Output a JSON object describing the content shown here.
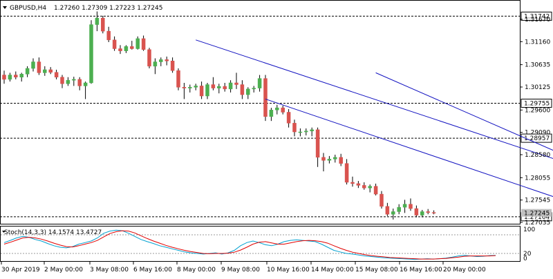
{
  "header": {
    "symbol_label": "GBPUSD,H4",
    "ohlc": "1.27260 1.27309 1.27223 1.27245"
  },
  "stoch": {
    "label": "Stoch(14,3,3) 14.1574 13.4727",
    "levels": [
      "100",
      "80",
      "20",
      "0"
    ]
  },
  "colors": {
    "bull": "#4caf50",
    "bear": "#d9534f",
    "channel": "#1010c0",
    "main_line": "#00a0d0",
    "signal_line": "#e00000",
    "grid_dash": "#000000"
  },
  "chart_data": {
    "type": "candlestick",
    "y_ticks": [
      "1.31670",
      "1.31160",
      "1.30635",
      "1.30125",
      "1.29600",
      "1.29090",
      "1.28580",
      "1.28055",
      "1.27545",
      "1.27035"
    ],
    "y_tick_values": [
      1.3167,
      1.3116,
      1.30635,
      1.30125,
      1.296,
      1.2909,
      1.2858,
      1.28055,
      1.27545,
      1.27035
    ],
    "horizontal_levels": [
      {
        "label": "1.31742",
        "value": 1.31742
      },
      {
        "label": "1.29755",
        "value": 1.29755
      },
      {
        "label": "1.28957",
        "value": 1.28957
      },
      {
        "label": "1.27164",
        "value": 1.27164
      }
    ],
    "current_price_label": "1.27245",
    "x_ticks": [
      "30 Apr 2019",
      "2 May 00:00",
      "3 May 08:00",
      "6 May 16:00",
      "8 May 00:00",
      "9 May 08:00",
      "10 May 16:00",
      "14 May 00:00",
      "15 May 08:00",
      "16 May 16:00",
      "20 May 00:00"
    ],
    "candles": [
      [
        1.304,
        1.305,
        1.302,
        1.303
      ],
      [
        1.303,
        1.3045,
        1.3025,
        1.304
      ],
      [
        1.304,
        1.3048,
        1.303,
        1.3035
      ],
      [
        1.3035,
        1.3045,
        1.3025,
        1.3042
      ],
      [
        1.3042,
        1.306,
        1.3035,
        1.3055
      ],
      [
        1.3055,
        1.3078,
        1.3048,
        1.307
      ],
      [
        1.307,
        1.308,
        1.304,
        1.3045
      ],
      [
        1.3045,
        1.306,
        1.3038,
        1.3052
      ],
      [
        1.3052,
        1.3058,
        1.3042,
        1.3046
      ],
      [
        1.3046,
        1.3052,
        1.303,
        1.3035
      ],
      [
        1.3035,
        1.304,
        1.301,
        1.302
      ],
      [
        1.302,
        1.3035,
        1.3015,
        1.3028
      ],
      [
        1.3028,
        1.3036,
        1.3015,
        1.303
      ],
      [
        1.303,
        1.3035,
        1.3005,
        1.3015
      ],
      [
        1.3015,
        1.3025,
        1.2985,
        1.3022
      ],
      [
        1.3022,
        1.3165,
        1.302,
        1.3155
      ],
      [
        1.3155,
        1.3185,
        1.314,
        1.317
      ],
      [
        1.317,
        1.3175,
        1.3135,
        1.314
      ],
      [
        1.314,
        1.315,
        1.3115,
        1.312
      ],
      [
        1.312,
        1.3128,
        1.3095,
        1.31
      ],
      [
        1.31,
        1.3108,
        1.3088,
        1.3095
      ],
      [
        1.3095,
        1.3108,
        1.309,
        1.3105
      ],
      [
        1.3105,
        1.3118,
        1.3098,
        1.31
      ],
      [
        1.31,
        1.3128,
        1.3098,
        1.3123
      ],
      [
        1.3123,
        1.313,
        1.3095,
        1.3098
      ],
      [
        1.3098,
        1.3102,
        1.3055,
        1.306
      ],
      [
        1.306,
        1.3078,
        1.3042,
        1.307
      ],
      [
        1.307,
        1.308,
        1.306,
        1.3075
      ],
      [
        1.3075,
        1.3082,
        1.3062,
        1.3072
      ],
      [
        1.3072,
        1.308,
        1.3045,
        1.305
      ],
      [
        1.305,
        1.3055,
        1.3005,
        1.3012
      ],
      [
        1.3012,
        1.3022,
        1.2985,
        1.301
      ],
      [
        1.301,
        1.3018,
        1.3,
        1.3012
      ],
      [
        1.3012,
        1.302,
        1.3005,
        1.3015
      ],
      [
        1.3015,
        1.3025,
        1.2985,
        1.2992
      ],
      [
        1.2992,
        1.3022,
        1.2985,
        1.3018
      ],
      [
        1.3018,
        1.3035,
        1.3005,
        1.301
      ],
      [
        1.301,
        1.302,
        1.2998,
        1.3014
      ],
      [
        1.3014,
        1.3022,
        1.3002,
        1.3008
      ],
      [
        1.3008,
        1.3028,
        1.3,
        1.3022
      ],
      [
        1.3022,
        1.3045,
        1.3008,
        1.3018
      ],
      [
        1.3018,
        1.3028,
        1.2985,
        1.2995
      ],
      [
        1.2995,
        1.3012,
        1.2985,
        1.3008
      ],
      [
        1.3008,
        1.3015,
        1.3,
        1.301
      ],
      [
        1.301,
        1.304,
        1.3002,
        1.3032
      ],
      [
        1.3032,
        1.304,
        1.2935,
        1.2945
      ],
      [
        1.2945,
        1.2965,
        1.2935,
        1.296
      ],
      [
        1.296,
        1.2972,
        1.295,
        1.2965
      ],
      [
        1.2965,
        1.297,
        1.295,
        1.2955
      ],
      [
        1.2955,
        1.2962,
        1.292,
        1.293
      ],
      [
        1.293,
        1.2938,
        1.29,
        1.291
      ],
      [
        1.291,
        1.2918,
        1.29,
        1.291
      ],
      [
        1.291,
        1.2918,
        1.2902,
        1.2912
      ],
      [
        1.2912,
        1.292,
        1.29,
        1.2915
      ],
      [
        1.2915,
        1.292,
        1.283,
        1.2852
      ],
      [
        1.2852,
        1.2862,
        1.282,
        1.2845
      ],
      [
        1.2845,
        1.2855,
        1.2838,
        1.2848
      ],
      [
        1.2848,
        1.2858,
        1.284,
        1.2852
      ],
      [
        1.2852,
        1.286,
        1.2832,
        1.2838
      ],
      [
        1.2838,
        1.2848,
        1.279,
        1.2795
      ],
      [
        1.2795,
        1.2808,
        1.2785,
        1.2792
      ],
      [
        1.2792,
        1.2798,
        1.2782,
        1.2788
      ],
      [
        1.2788,
        1.2795,
        1.2778,
        1.2782
      ],
      [
        1.2782,
        1.279,
        1.2772,
        1.2786
      ],
      [
        1.2786,
        1.2792,
        1.2765,
        1.2768
      ],
      [
        1.2768,
        1.2775,
        1.2735,
        1.274
      ],
      [
        1.274,
        1.2748,
        1.2718,
        1.2722
      ],
      [
        1.2722,
        1.2735,
        1.271,
        1.2728
      ],
      [
        1.2728,
        1.2745,
        1.2722,
        1.2738
      ],
      [
        1.2738,
        1.2755,
        1.2725,
        1.2745
      ],
      [
        1.2745,
        1.2758,
        1.273,
        1.2735
      ],
      [
        1.2735,
        1.2742,
        1.2715,
        1.272
      ],
      [
        1.272,
        1.2732,
        1.2715,
        1.2728
      ],
      [
        1.2728,
        1.2734,
        1.2722,
        1.2726
      ],
      [
        1.2726,
        1.2731,
        1.2722,
        1.27245
      ]
    ],
    "channels": [
      {
        "start": {
          "bar": 33,
          "price": 1.312
        },
        "end": {
          "bar": 108,
          "price": 1.279
        }
      },
      {
        "start": {
          "bar": 45,
          "price": 1.2985
        },
        "end": {
          "bar": 108,
          "price": 1.2702
        }
      },
      {
        "start": {
          "bar": 64,
          "price": 1.3045
        },
        "end": {
          "bar": 108,
          "price": 1.279
        }
      }
    ],
    "stoch_main": [
      55,
      62,
      70,
      75,
      72,
      65,
      60,
      52,
      45,
      40,
      38,
      42,
      50,
      55,
      60,
      70,
      85,
      92,
      95,
      93,
      85,
      75,
      65,
      58,
      52,
      45,
      40,
      35,
      30,
      25,
      22,
      20,
      18,
      20,
      22,
      18,
      22,
      30,
      45,
      55,
      60,
      55,
      48,
      45,
      50,
      58,
      62,
      64,
      62,
      60,
      58,
      50,
      40,
      30,
      25,
      20,
      18,
      15,
      12,
      10,
      8,
      6,
      5,
      4,
      3,
      2,
      1,
      2,
      3,
      2,
      3,
      5,
      8,
      12,
      14,
      12,
      10,
      11,
      13,
      14
    ],
    "stoch_signal": [
      50,
      56,
      63,
      70,
      72,
      70,
      66,
      60,
      53,
      47,
      42,
      41,
      45,
      50,
      55,
      62,
      73,
      84,
      90,
      93,
      92,
      86,
      77,
      68,
      60,
      53,
      46,
      40,
      35,
      30,
      26,
      23,
      20,
      19,
      20,
      20,
      21,
      24,
      31,
      40,
      50,
      56,
      58,
      54,
      50,
      50,
      54,
      58,
      61,
      62,
      61,
      58,
      53,
      45,
      37,
      30,
      24,
      20,
      16,
      13,
      11,
      9,
      7,
      6,
      5,
      4,
      3,
      2,
      2,
      2,
      3,
      4,
      6,
      8,
      11,
      12,
      12,
      12,
      12,
      13
    ]
  }
}
